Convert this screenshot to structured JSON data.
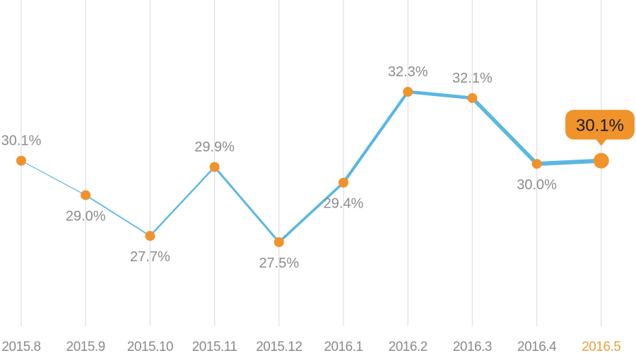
{
  "chart_data": {
    "type": "line",
    "categories": [
      "2015.8",
      "2015.9",
      "2015.10",
      "2015.11",
      "2015.12",
      "2016.1",
      "2016.2",
      "2016.3",
      "2016.4",
      "2016.5"
    ],
    "values": [
      30.1,
      29.0,
      27.7,
      29.9,
      27.5,
      29.4,
      32.3,
      32.1,
      30.0,
      30.1
    ],
    "data_labels": [
      "30.1%",
      "29.0%",
      "27.7%",
      "29.9%",
      "27.5%",
      "29.4%",
      "32.3%",
      "32.1%",
      "30.0%",
      "30.1%"
    ],
    "highlight_category": "2016.5",
    "highlight_label": "30.1%",
    "grid": "vertical",
    "ylim": [
      25,
      33.5
    ],
    "colors": {
      "line": "#5ab8e2",
      "marker": "#f0932b",
      "highlight_text": "#e8a13a",
      "grid": "#dedee6",
      "label": "#8c8c8c"
    }
  }
}
